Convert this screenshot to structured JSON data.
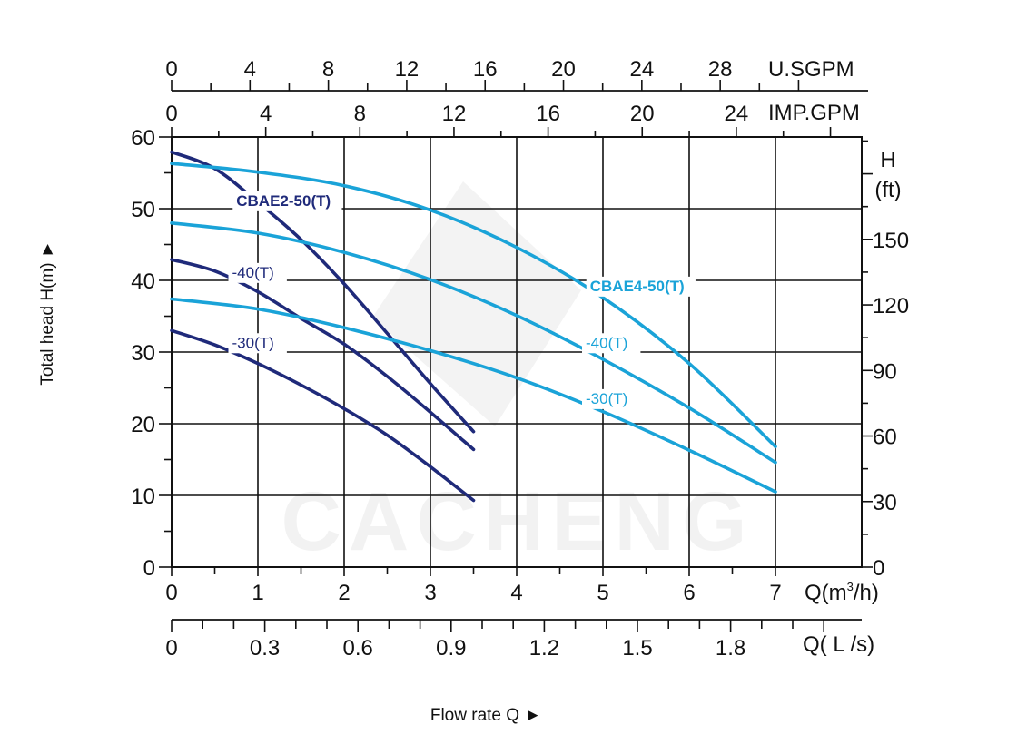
{
  "chart_data": {
    "type": "line",
    "axes": {
      "x_main": {
        "unit_label": "Q(m³/h)",
        "min": 0,
        "max": 8,
        "tick_labels": [
          "0",
          "1",
          "2",
          "3",
          "4",
          "5",
          "6",
          "7"
        ]
      },
      "x_ls": {
        "unit_label": "Q( L /s)",
        "tick_labels": [
          "0",
          "0.3",
          "0.6",
          "0.9",
          "1.2",
          "1.5",
          "1.8"
        ]
      },
      "x_usgpm": {
        "unit_label": "U.SGPM",
        "tick_labels": [
          "0",
          "4",
          "8",
          "12",
          "16",
          "20",
          "24",
          "28"
        ]
      },
      "x_impgpm": {
        "unit_label": "IMP.GPM",
        "tick_labels": [
          "0",
          "4",
          "8",
          "12",
          "16",
          "20",
          "24"
        ]
      },
      "y_left": {
        "label": "Total  head H(m) ►",
        "min": 0,
        "max": 60,
        "tick_labels": [
          "0",
          "10",
          "20",
          "30",
          "40",
          "50",
          "60"
        ]
      },
      "y_right": {
        "label_line1": "H",
        "label_line2": "(ft)",
        "tick_labels": [
          "0",
          "30",
          "60",
          "90",
          "120",
          "150"
        ]
      },
      "x_title": "Flow rate  Q ►"
    },
    "grid": true,
    "watermark": "CACHENG",
    "series": [
      {
        "name": "CBAE2-50(T)",
        "group": "CBAE2",
        "color": "#1f2a7a",
        "points": [
          [
            0,
            57.9
          ],
          [
            0.5,
            55.6
          ],
          [
            1,
            50.9
          ],
          [
            1.5,
            45.7
          ],
          [
            2,
            39.5
          ],
          [
            2.5,
            32.6
          ],
          [
            3,
            25.6
          ],
          [
            3.5,
            18.9
          ]
        ]
      },
      {
        "name": "-40(T)",
        "group": "CBAE2",
        "color": "#1f2a7a",
        "points": [
          [
            0,
            42.9
          ],
          [
            0.5,
            41.3
          ],
          [
            1,
            38.4
          ],
          [
            1.5,
            34.7
          ],
          [
            2,
            31.1
          ],
          [
            2.5,
            26.6
          ],
          [
            3,
            21.6
          ],
          [
            3.5,
            16.4
          ]
        ]
      },
      {
        "name": "-30(T)",
        "group": "CBAE2",
        "color": "#1f2a7a",
        "points": [
          [
            0,
            33.0
          ],
          [
            0.5,
            31.0
          ],
          [
            1,
            28.4
          ],
          [
            1.5,
            25.4
          ],
          [
            2,
            22.1
          ],
          [
            2.5,
            18.4
          ],
          [
            3,
            14.0
          ],
          [
            3.5,
            9.3
          ]
        ]
      },
      {
        "name": "CBAE4-50(T)",
        "group": "CBAE4",
        "color": "#1aa3d8",
        "points": [
          [
            0,
            56.3
          ],
          [
            1,
            55.1
          ],
          [
            2,
            53.2
          ],
          [
            3,
            49.8
          ],
          [
            4,
            44.6
          ],
          [
            5,
            37.6
          ],
          [
            6,
            28.4
          ],
          [
            7,
            16.8
          ]
        ]
      },
      {
        "name": "-40(T)",
        "group": "CBAE4",
        "color": "#1aa3d8",
        "points": [
          [
            0,
            48.0
          ],
          [
            1,
            46.6
          ],
          [
            2,
            43.9
          ],
          [
            3,
            40.1
          ],
          [
            4,
            35.1
          ],
          [
            5,
            29.0
          ],
          [
            6,
            22.2
          ],
          [
            7,
            14.6
          ]
        ]
      },
      {
        "name": "-30(T)",
        "group": "CBAE4",
        "color": "#1aa3d8",
        "points": [
          [
            0,
            37.4
          ],
          [
            1,
            36.0
          ],
          [
            2,
            33.4
          ],
          [
            3,
            30.2
          ],
          [
            4,
            26.4
          ],
          [
            5,
            21.7
          ],
          [
            6,
            16.3
          ],
          [
            7,
            10.5
          ]
        ]
      }
    ],
    "curve_labels": [
      {
        "text": "CBAE2-50(T)",
        "color": "#1f2a7a",
        "bold": true,
        "at": [
          0.75,
          50.4
        ]
      },
      {
        "text": "-40(T)",
        "color": "#1f2a7a",
        "bold": false,
        "at": [
          0.7,
          40.4
        ]
      },
      {
        "text": "-30(T)",
        "color": "#1f2a7a",
        "bold": false,
        "at": [
          0.7,
          30.6
        ]
      },
      {
        "text": "CBAE4-50(T)",
        "color": "#1aa3d8",
        "bold": true,
        "at": [
          4.85,
          38.5
        ]
      },
      {
        "text": "-40(T)",
        "color": "#1aa3d8",
        "bold": false,
        "at": [
          4.8,
          30.6
        ]
      },
      {
        "text": "-30(T)",
        "color": "#1aa3d8",
        "bold": false,
        "at": [
          4.8,
          22.8
        ]
      }
    ]
  }
}
